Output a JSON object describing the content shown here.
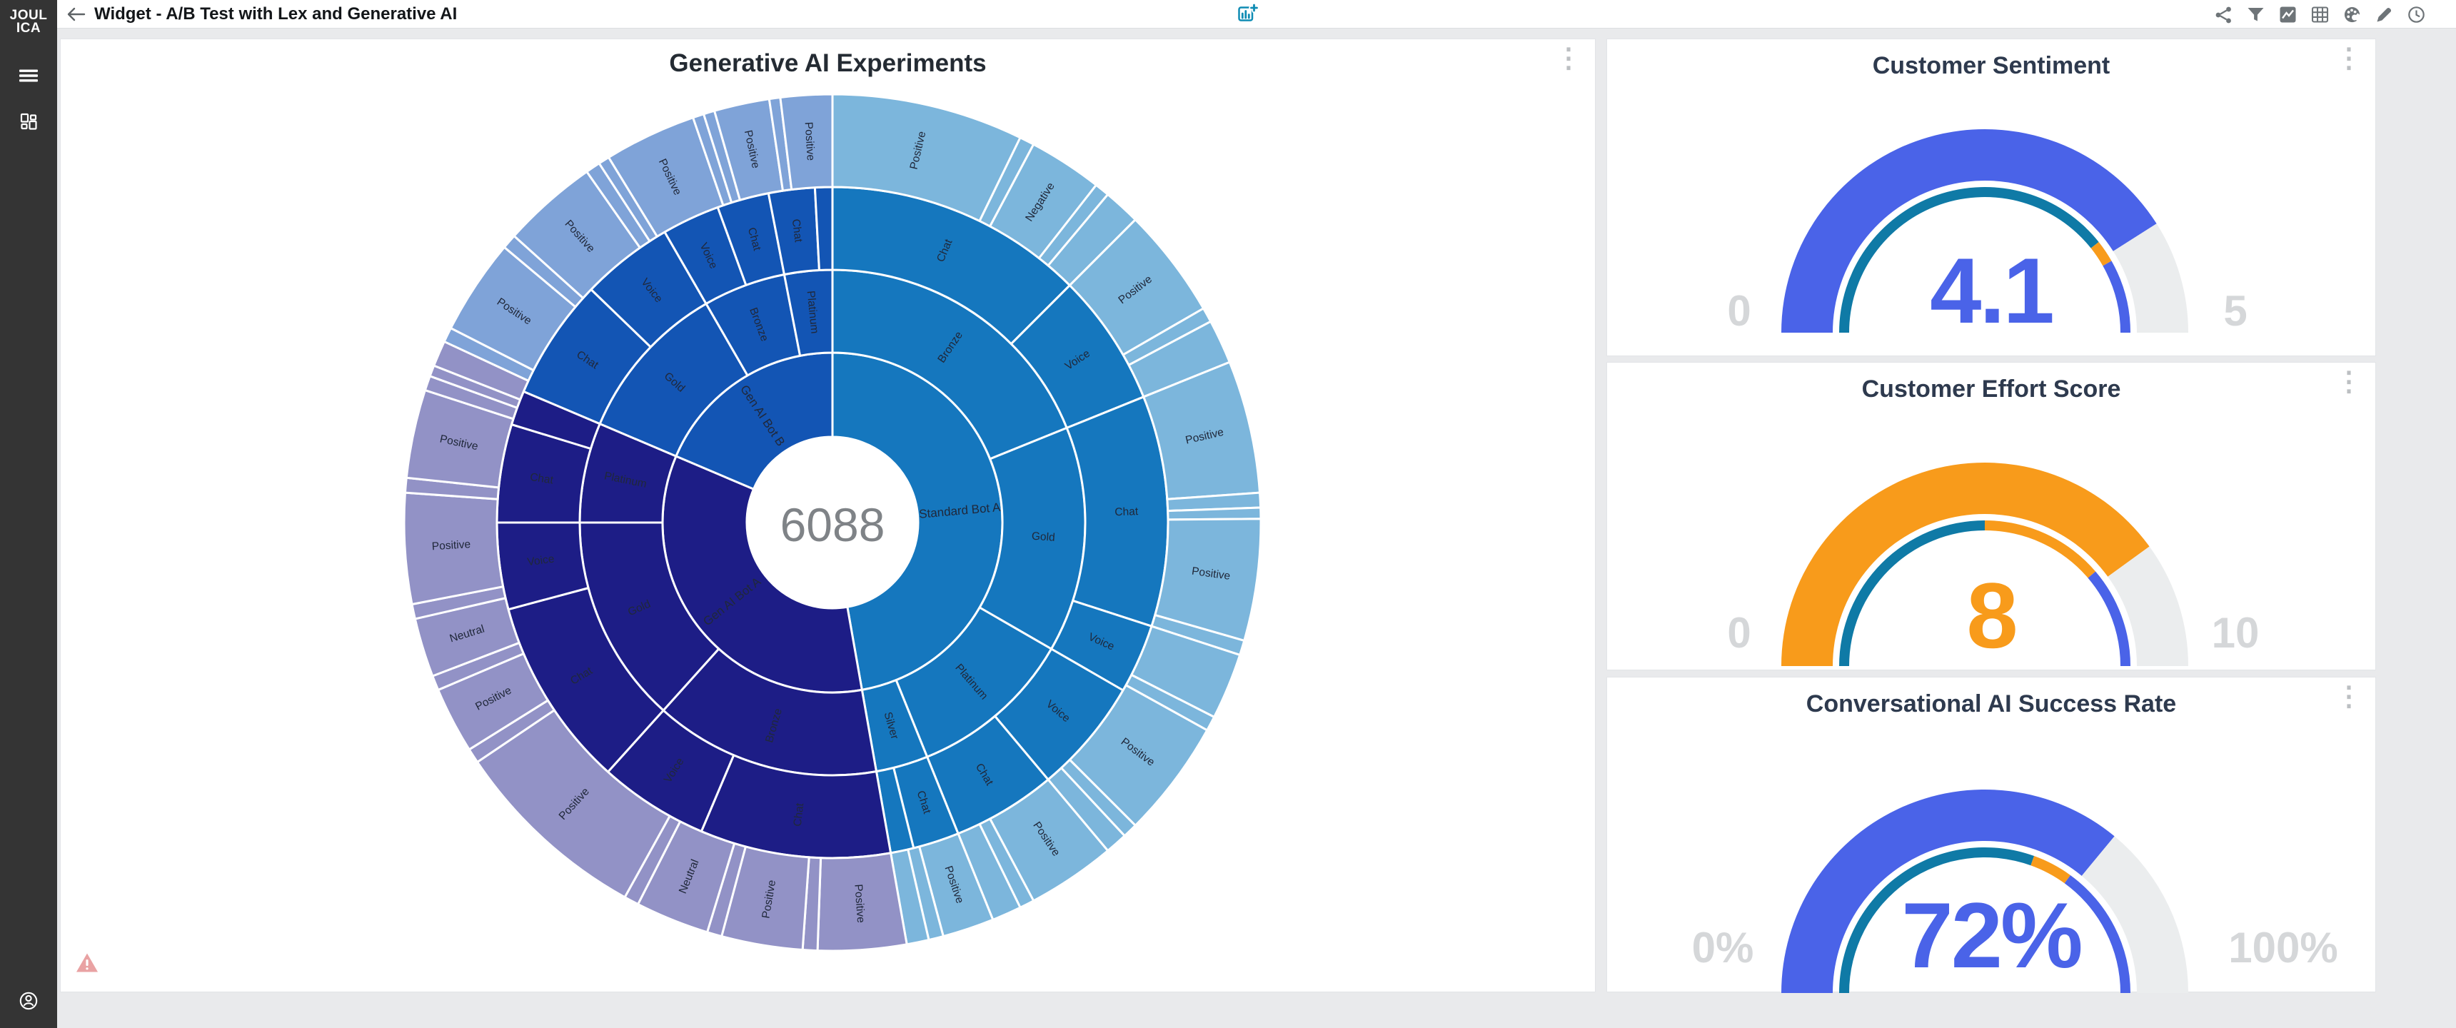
{
  "app": {
    "name": "Joulica"
  },
  "colors": {
    "page_bg": "#E9EAEC",
    "sidebar_bg": "#343434",
    "header_icon": "#6E7478",
    "accent_blue": "#4A63E8",
    "accent_orange": "#F89B1B",
    "accent_teal": "#0F7AA6",
    "gauge_track": "#EBEDEE",
    "minmax_gray": "#D5D7D9",
    "warning_salmon": "#E9A2A3",
    "add_chart_teal": "#0F8CB4"
  },
  "sidebar": {
    "logo_line1": "JOUL",
    "logo_line2": "ICA",
    "icons": [
      "menu",
      "dashboards",
      "account"
    ]
  },
  "header": {
    "title": "Widget - A/B Test with Lex and Generative AI",
    "right_icons": [
      "share",
      "filter",
      "image",
      "table",
      "palette",
      "edit",
      "history"
    ]
  },
  "chart_data": [
    {
      "type": "sunburst",
      "title": "Generative AI Experiments",
      "center_total": "6088",
      "hierarchy": {
        "levels": [
          "Bot",
          "Customer Tier",
          "Channel",
          "Sentiment"
        ],
        "bots": [
          {
            "name": "Standard Bot A",
            "approx_share_pct": 47,
            "tiers": [
              "Bronze",
              "Gold",
              "Platinum",
              "Silver"
            ],
            "channels": [
              "Chat",
              "Voice"
            ],
            "sentiments": [
              "Positive",
              "Negative",
              "Neutral"
            ]
          },
          {
            "name": "Gen AI Bot A",
            "approx_share_pct": 34,
            "tiers": [
              "Bronze",
              "Gold",
              "Platinum"
            ],
            "channels": [
              "Chat",
              "Voice"
            ],
            "sentiments": [
              "Positive",
              "Neutral",
              "Negative"
            ]
          },
          {
            "name": "Gen AI Bot B",
            "approx_share_pct": 19,
            "tiers": [
              "Gold",
              "Bronze",
              "Platinum"
            ],
            "channels": [
              "Chat",
              "Voice"
            ],
            "sentiments": [
              "Positive",
              "Negative",
              "Neutral"
            ]
          }
        ]
      },
      "radii": [
        120,
        238,
        354,
        470,
        600
      ],
      "palette": {
        "s": "#1577BE",
        "os": "#7CB6DC",
        "a": "#1D1D86",
        "oa": "#9292C6",
        "b": "#1355B4",
        "ob": "#7FA3D8"
      },
      "label_color": "#20283A",
      "segments": [
        [
          0,
          0,
          170,
          "s",
          "Standard Bot A"
        ],
        [
          0,
          170,
          293,
          "a",
          "Gen AI Bot A"
        ],
        [
          0,
          293,
          360,
          "b",
          "Gen AI Bot B"
        ],
        [
          1,
          0,
          68,
          "s",
          "Bronze"
        ],
        [
          1,
          68,
          120,
          "s",
          "Gold"
        ],
        [
          1,
          120,
          158,
          "s",
          "Platinum"
        ],
        [
          1,
          158,
          170,
          "s",
          "Silver"
        ],
        [
          1,
          170,
          222,
          "a",
          "Bronze"
        ],
        [
          1,
          222,
          270,
          "a",
          "Gold"
        ],
        [
          1,
          270,
          293,
          "a",
          "Platinum"
        ],
        [
          1,
          293,
          330,
          "b",
          "Gold"
        ],
        [
          1,
          330,
          349,
          "b",
          "Bronze"
        ],
        [
          1,
          349,
          360,
          "b",
          "Platinum"
        ],
        [
          2,
          0,
          45,
          "s",
          "Chat"
        ],
        [
          2,
          45,
          68,
          "s",
          "Voice"
        ],
        [
          2,
          68,
          108,
          "s",
          "Chat"
        ],
        [
          2,
          108,
          120,
          "s",
          "Voice"
        ],
        [
          2,
          120,
          140,
          "s",
          "Voice"
        ],
        [
          2,
          140,
          158,
          "s",
          "Chat"
        ],
        [
          2,
          158,
          166,
          "s",
          "Chat"
        ],
        [
          2,
          166,
          170,
          "s",
          ""
        ],
        [
          2,
          170,
          203,
          "a",
          "Chat"
        ],
        [
          2,
          203,
          222,
          "a",
          "Voice"
        ],
        [
          2,
          222,
          255,
          "a",
          "Chat"
        ],
        [
          2,
          255,
          270,
          "a",
          "Voice"
        ],
        [
          2,
          270,
          287,
          "a",
          "Chat"
        ],
        [
          2,
          287,
          293,
          "a",
          ""
        ],
        [
          2,
          293,
          314,
          "b",
          "Chat"
        ],
        [
          2,
          314,
          330,
          "b",
          "Voice"
        ],
        [
          2,
          330,
          340,
          "b",
          "Voice"
        ],
        [
          2,
          340,
          349,
          "b",
          "Chat"
        ],
        [
          2,
          349,
          357,
          "b",
          "Chat"
        ],
        [
          2,
          357,
          360,
          "b",
          ""
        ],
        [
          3,
          0,
          26,
          "os",
          "Positive"
        ],
        [
          3,
          26,
          28,
          "os",
          ""
        ],
        [
          3,
          28,
          38,
          "os",
          "Negative"
        ],
        [
          3,
          38,
          40,
          "os",
          ""
        ],
        [
          3,
          40,
          45,
          "os",
          ""
        ],
        [
          3,
          45,
          60,
          "os",
          "Positive"
        ],
        [
          3,
          60,
          62,
          "os",
          ""
        ],
        [
          3,
          62,
          68,
          "os",
          ""
        ],
        [
          3,
          68,
          86,
          "os",
          "Positive"
        ],
        [
          3,
          86,
          88,
          "os",
          ""
        ],
        [
          3,
          88,
          89.5,
          "os",
          ""
        ],
        [
          3,
          89.5,
          106,
          "os",
          "Positive"
        ],
        [
          3,
          106,
          108,
          "os",
          ""
        ],
        [
          3,
          108,
          117,
          "os",
          ""
        ],
        [
          3,
          117,
          119,
          "os",
          ""
        ],
        [
          3,
          119,
          135,
          "os",
          "Positive"
        ],
        [
          3,
          135,
          137,
          "os",
          ""
        ],
        [
          3,
          137,
          140,
          "os",
          ""
        ],
        [
          3,
          140,
          152,
          "os",
          "Positive"
        ],
        [
          3,
          152,
          154,
          "os",
          ""
        ],
        [
          3,
          154,
          158,
          "os",
          ""
        ],
        [
          3,
          158,
          165,
          "os",
          "Positive"
        ],
        [
          3,
          165,
          167,
          "os",
          ""
        ],
        [
          3,
          167,
          170,
          "os",
          ""
        ],
        [
          3,
          170,
          182,
          "oa",
          "Positive"
        ],
        [
          3,
          182,
          184,
          "oa",
          ""
        ],
        [
          3,
          184,
          195,
          "oa",
          "Positive"
        ],
        [
          3,
          195,
          197,
          "oa",
          ""
        ],
        [
          3,
          197,
          207,
          "oa",
          "Neutral"
        ],
        [
          3,
          207,
          209,
          "oa",
          ""
        ],
        [
          3,
          209,
          236,
          "oa",
          "Positive"
        ],
        [
          3,
          236,
          238,
          "oa",
          ""
        ],
        [
          3,
          238,
          247,
          "oa",
          "Positive"
        ],
        [
          3,
          247,
          249,
          "oa",
          ""
        ],
        [
          3,
          249,
          257,
          "oa",
          "Neutral"
        ],
        [
          3,
          257,
          259,
          "oa",
          ""
        ],
        [
          3,
          259,
          274,
          "oa",
          "Positive"
        ],
        [
          3,
          274,
          276,
          "oa",
          ""
        ],
        [
          3,
          276,
          288,
          "oa",
          "Positive"
        ],
        [
          3,
          288,
          290,
          "oa",
          ""
        ],
        [
          3,
          290,
          291.5,
          "oa",
          ""
        ],
        [
          3,
          291.5,
          295,
          "oa",
          ""
        ],
        [
          3,
          295,
          297,
          "ob",
          ""
        ],
        [
          3,
          297,
          310,
          "ob",
          "Positive"
        ],
        [
          3,
          310,
          312,
          "ob",
          ""
        ],
        [
          3,
          312,
          325,
          "ob",
          "Positive"
        ],
        [
          3,
          325,
          327,
          "ob",
          ""
        ],
        [
          3,
          327,
          328.5,
          "ob",
          ""
        ],
        [
          3,
          328.5,
          341,
          "ob",
          "Positive"
        ],
        [
          3,
          341,
          342.5,
          "ob",
          ""
        ],
        [
          3,
          342.5,
          344,
          "ob",
          ""
        ],
        [
          3,
          344,
          351.5,
          "ob",
          "Positive"
        ],
        [
          3,
          351.5,
          353,
          "ob",
          ""
        ],
        [
          3,
          353,
          360,
          "ob",
          "Positive"
        ]
      ]
    },
    {
      "type": "gauge",
      "title": "Customer Sentiment",
      "value": 4.1,
      "value_label": "4.1",
      "min": 0,
      "max": 5,
      "min_label": "0",
      "max_label": "5",
      "fraction": 0.82,
      "accent": "#4A63E8",
      "track": "#EBEDEE",
      "inner_bands": [
        [
          0,
          0.786,
          "#0F7AA6"
        ],
        [
          0.786,
          0.836,
          "#F89B1B"
        ],
        [
          0.836,
          1,
          "#4A63E8"
        ]
      ]
    },
    {
      "type": "gauge",
      "title": "Customer Effort Score",
      "value": 8,
      "value_label": "8",
      "min": 0,
      "max": 10,
      "min_label": "0",
      "max_label": "10",
      "fraction": 0.8,
      "accent": "#F89B1B",
      "track": "#EBEDEE",
      "inner_bands": [
        [
          0,
          0.5,
          "#0F7AA6"
        ],
        [
          0.5,
          0.775,
          "#F89B1B"
        ],
        [
          0.775,
          1,
          "#4A63E8"
        ]
      ]
    },
    {
      "type": "gauge",
      "title": "Conversational AI Success Rate",
      "value": 72,
      "value_label": "72%",
      "min": 0,
      "max": 100,
      "min_label": "0%",
      "max_label": "100%",
      "fraction": 0.72,
      "accent": "#4A63E8",
      "track": "#EBEDEE",
      "inner_bands": [
        [
          0,
          0.61,
          "#0F7AA6"
        ],
        [
          0.61,
          0.7,
          "#F89B1B"
        ],
        [
          0.7,
          1,
          "#4A63E8"
        ]
      ]
    }
  ]
}
